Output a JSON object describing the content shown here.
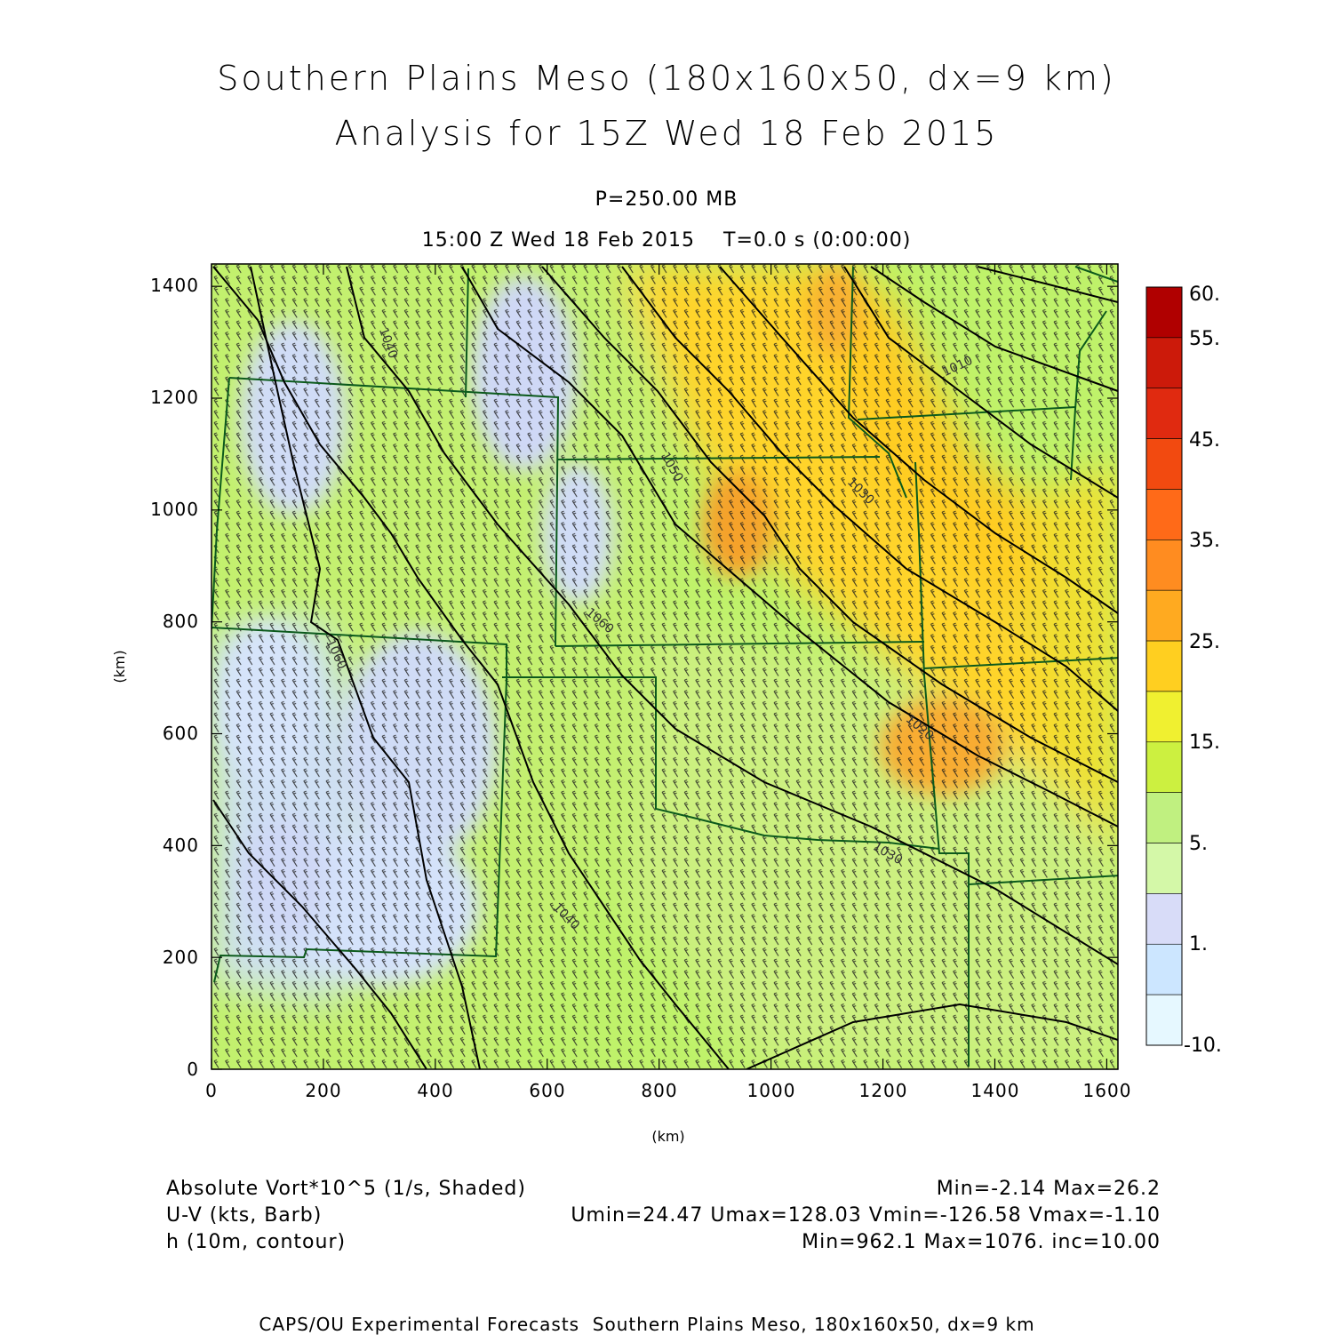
{
  "header": {
    "title_line1": "Southern Plains Meso (180x160x50, dx=9 km)",
    "title_line2": "Analysis for 15Z Wed 18 Feb 2015",
    "level": "P=250.00 MB",
    "time": "15:00 Z Wed 18 Feb 2015    T=0.0 s (0:00:00)"
  },
  "axes": {
    "x_unit": "(km)",
    "y_unit": "(km)",
    "x_ticks": [
      "0",
      "200",
      "400",
      "600",
      "800",
      "1000",
      "1200",
      "1400",
      "1600"
    ],
    "y_ticks": [
      "0",
      "200",
      "400",
      "600",
      "800",
      "1000",
      "1200",
      "1400"
    ],
    "x_range": [
      0,
      1620
    ],
    "y_range": [
      0,
      1440
    ]
  },
  "colorbar": {
    "labels": [
      "60.",
      "55.",
      "45.",
      "35.",
      "25.",
      "15.",
      "5.",
      "1.",
      "-10."
    ],
    "colors": [
      "#b00000",
      "#cc1a0a",
      "#e02a10",
      "#f24a10",
      "#ff6a18",
      "#ff8c20",
      "#ffaa20",
      "#ffcf20",
      "#f0f030",
      "#ccf040",
      "#c0f080",
      "#d4f8a8",
      "#d8dcf8",
      "#cce6ff",
      "#e6f8ff"
    ]
  },
  "contour_labels": [
    "1040",
    "1060",
    "1050",
    "1060",
    "1040",
    "1030",
    "1020",
    "1010",
    "1030",
    "1050",
    "1020"
  ],
  "legend": {
    "field1_name": "Absolute Vort*10^5 (1/s, Shaded)",
    "field1_stats": "Min=-2.14 Max=26.2",
    "field2_name": "U-V (kts, Barb)",
    "field2_stats": "Umin=24.47 Umax=128.03 Vmin=-126.58 Vmax=-1.10",
    "field3_name": "h (10m, contour)",
    "field3_stats": "Min=962.1 Max=1076. inc=10.00"
  },
  "credit": "CAPS/OU Experimental Forecasts  Southern Plains Meso, 180x160x50, dx=9 km"
}
